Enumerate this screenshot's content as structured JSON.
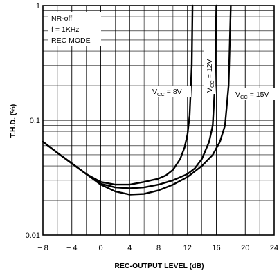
{
  "chart_data": {
    "type": "line",
    "title": "",
    "xlabel": "REC-OUTPUT LEVEL (dB)",
    "ylabel": "T.H.D. (%)",
    "xlim": [
      -8,
      24
    ],
    "ylim": [
      0.01,
      1
    ],
    "yscale": "log",
    "x_ticks": [
      "-8",
      "-4",
      "0",
      "4",
      "8",
      "12",
      "16",
      "20",
      "24"
    ],
    "y_ticks": [
      "0.01",
      "0.1",
      "1"
    ],
    "grid": true,
    "annotations": [
      "NR-off",
      "f = 1KHz",
      "REC MODE"
    ],
    "series": [
      {
        "name": "Vcc = 8V",
        "label_main": "V",
        "label_sub": "CC",
        "label_tail": " = 8V",
        "x": [
          -8,
          -6,
          -4,
          -2,
          0,
          2,
          4,
          6,
          8,
          9,
          10,
          11,
          11.6,
          12,
          12.3,
          12.6,
          12.7
        ],
        "y": [
          0.065,
          0.052,
          0.042,
          0.034,
          0.029,
          0.0275,
          0.0275,
          0.029,
          0.031,
          0.033,
          0.037,
          0.046,
          0.058,
          0.075,
          0.11,
          0.3,
          1.0
        ]
      },
      {
        "name": "Vcc = 12V",
        "label_main": "V",
        "label_sub": "CC",
        "label_tail": " = 12V",
        "x": [
          -8,
          -6,
          -4,
          -2,
          0,
          2,
          4,
          6,
          8,
          10,
          12,
          13,
          14,
          15,
          15.5,
          15.8,
          16
        ],
        "y": [
          0.065,
          0.052,
          0.042,
          0.034,
          0.028,
          0.026,
          0.0255,
          0.026,
          0.0275,
          0.03,
          0.034,
          0.038,
          0.046,
          0.065,
          0.09,
          0.2,
          1.0
        ]
      },
      {
        "name": "Vcc = 15V",
        "label_main": "V",
        "label_sub": "CC",
        "label_tail": " = 15V",
        "x": [
          -8,
          -6,
          -4,
          -2,
          0,
          2,
          4,
          6,
          8,
          10,
          12,
          14,
          15.5,
          16.5,
          17.2,
          17.7,
          18
        ],
        "y": [
          0.065,
          0.052,
          0.042,
          0.034,
          0.0275,
          0.024,
          0.0225,
          0.0228,
          0.0245,
          0.0275,
          0.032,
          0.04,
          0.05,
          0.065,
          0.09,
          0.2,
          1.0
        ]
      }
    ]
  }
}
